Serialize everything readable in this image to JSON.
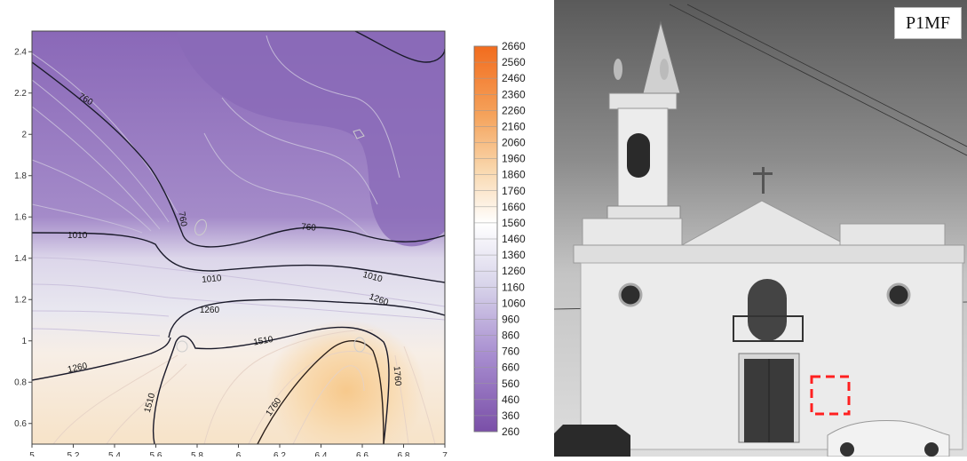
{
  "chart_data": {
    "type": "contour",
    "title": "",
    "xlabel": "",
    "ylabel": "",
    "xlim": [
      5,
      7
    ],
    "ylim": [
      0.5,
      2.5
    ],
    "x_ticks": [
      "5",
      "5.2",
      "5.4",
      "5.6",
      "5.8",
      "6",
      "6.2",
      "6.4",
      "6.6",
      "6.8",
      "7"
    ],
    "y_ticks": [
      "0.6",
      "0.8",
      "1",
      "1.2",
      "1.4",
      "1.6",
      "1.8",
      "2",
      "2.2",
      "2.4"
    ],
    "contour_labels": [
      {
        "text": "760",
        "x": 5.26,
        "y": 2.17,
        "rotate": 32
      },
      {
        "text": "760",
        "x": 5.73,
        "y": 1.59,
        "rotate": 80
      },
      {
        "text": "760",
        "x": 6.34,
        "y": 1.55,
        "rotate": 5
      },
      {
        "text": "1010",
        "x": 5.22,
        "y": 1.51,
        "rotate": 0
      },
      {
        "text": "1010",
        "x": 5.87,
        "y": 1.3,
        "rotate": -5
      },
      {
        "text": "1010",
        "x": 6.65,
        "y": 1.31,
        "rotate": 15
      },
      {
        "text": "1260",
        "x": 5.86,
        "y": 1.15,
        "rotate": 0
      },
      {
        "text": "1260",
        "x": 6.68,
        "y": 1.2,
        "rotate": 20
      },
      {
        "text": "1260",
        "x": 5.22,
        "y": 0.87,
        "rotate": -12
      },
      {
        "text": "1510",
        "x": 6.12,
        "y": 1.0,
        "rotate": -10
      },
      {
        "text": "1510",
        "x": 5.57,
        "y": 0.7,
        "rotate": -75
      },
      {
        "text": "1760",
        "x": 6.17,
        "y": 0.68,
        "rotate": -55
      },
      {
        "text": "1760",
        "x": 6.77,
        "y": 0.83,
        "rotate": 85
      }
    ],
    "colorbar": {
      "ticks": [
        "2660",
        "2560",
        "2460",
        "2360",
        "2260",
        "2160",
        "2060",
        "1960",
        "1860",
        "1760",
        "1660",
        "1560",
        "1460",
        "1360",
        "1260",
        "1160",
        "1060",
        "960",
        "860",
        "760",
        "660",
        "560",
        "460",
        "360",
        "260"
      ],
      "high_color": "#f26c1e",
      "mid_color": "#ffffff",
      "low_color": "#7a4fa8"
    }
  },
  "photo": {
    "tag": "P1MF",
    "marker_color": "#ff2020"
  }
}
